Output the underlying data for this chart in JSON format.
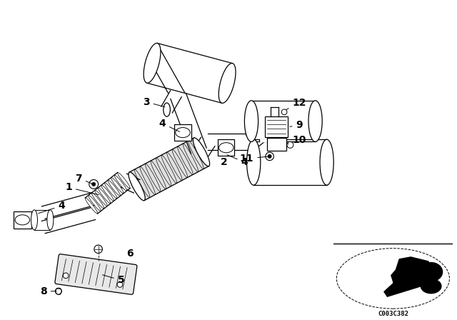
{
  "bg_color": "#ffffff",
  "fg_color": "#000000",
  "watermark": "C003C382",
  "fig_width": 6.4,
  "fig_height": 4.48,
  "dpi": 100
}
